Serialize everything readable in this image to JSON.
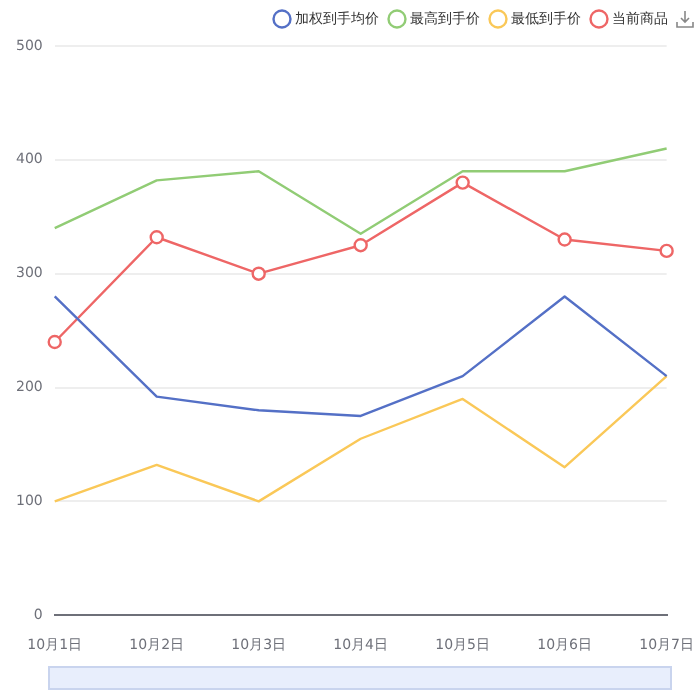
{
  "chart_data": {
    "type": "line",
    "categories": [
      "10月1日",
      "10月2日",
      "10月3日",
      "10月4日",
      "10月5日",
      "10月6日",
      "10月7日"
    ],
    "series": [
      {
        "name": "加权到手均价",
        "color": "#5470c6",
        "values": [
          280,
          192,
          180,
          175,
          210,
          280,
          210
        ]
      },
      {
        "name": "最高到手价",
        "color": "#91cc75",
        "values": [
          340,
          382,
          390,
          335,
          390,
          390,
          410
        ]
      },
      {
        "name": "最低到手价",
        "color": "#fac858",
        "values": [
          100,
          132,
          100,
          155,
          190,
          130,
          210
        ]
      },
      {
        "name": "当前商品",
        "color": "#ee6666",
        "values": [
          240,
          332,
          300,
          325,
          380,
          330,
          320
        ],
        "marker": "circle"
      }
    ],
    "ylim": [
      0,
      500
    ],
    "yticks": [
      0,
      100,
      200,
      300,
      400,
      500
    ],
    "grid": "y",
    "legend": "top right",
    "marker": "none",
    "line_style": "solid"
  }
}
